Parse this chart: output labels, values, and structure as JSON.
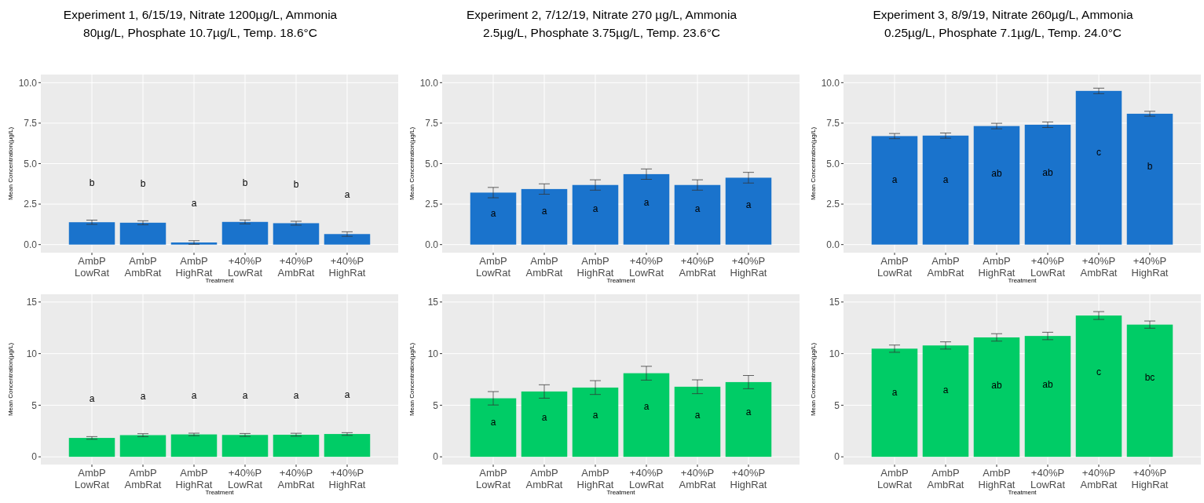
{
  "chart_data": [
    {
      "type": "bar",
      "title": "Experiment 1, 6/15/19, Nitrate 1200µg/L, Ammonia 80µg/L, Phosphate 10.7µg/L, Temp. 18.6°C",
      "xlabel": "Treatment",
      "ylabel": "Mean Concentration(µg/L)",
      "categories": [
        "AmbP LowRat",
        "AmbP AmbRat",
        "AmbP HighRat",
        "+40%P LowRat",
        "+40%P AmbRat",
        "+40%P HighRat"
      ],
      "values": [
        1.38,
        1.35,
        0.13,
        1.4,
        1.32,
        0.65
      ],
      "errors": [
        0.13,
        0.12,
        0.11,
        0.12,
        0.12,
        0.14
      ],
      "color": "#1a73cc",
      "ylim": [
        -0.5,
        10.5
      ],
      "yticks": [
        {
          "value": 0,
          "label": "0.0"
        },
        {
          "value": 2.5,
          "label": "2.5"
        },
        {
          "value": 5,
          "label": "5.0"
        },
        {
          "value": 7.5,
          "label": "7.5"
        },
        {
          "value": 10,
          "label": "10.0"
        }
      ],
      "grid": true,
      "annotations": [
        "b",
        "b",
        "a",
        "b",
        "b",
        "a"
      ]
    },
    {
      "type": "bar",
      "title": "Experiment 2, 7/12/19, Nitrate 270 µg/L, Ammonia 2.5µg/L, Phosphate 3.75µg/L, Temp. 23.6°C",
      "xlabel": "Treatment",
      "ylabel": "Mean Concentration(µg/L)",
      "categories": [
        "AmbP LowRat",
        "AmbP AmbRat",
        "AmbP HighRat",
        "+40%P LowRat",
        "+40%P AmbRat",
        "+40%P HighRat"
      ],
      "values": [
        3.21,
        3.43,
        3.68,
        4.35,
        3.68,
        4.13
      ],
      "errors": [
        0.32,
        0.32,
        0.32,
        0.32,
        0.32,
        0.33
      ],
      "color": "#1a73cc",
      "ylim": [
        -0.5,
        10.5
      ],
      "yticks": [
        {
          "value": 0,
          "label": "0.0"
        },
        {
          "value": 2.5,
          "label": "2.5"
        },
        {
          "value": 5,
          "label": "5.0"
        },
        {
          "value": 7.5,
          "label": "7.5"
        },
        {
          "value": 10,
          "label": "10.0"
        }
      ],
      "grid": true,
      "annotations": [
        "a",
        "a",
        "a",
        "a",
        "a",
        "a"
      ]
    },
    {
      "type": "bar",
      "title": "Experiment 3, 8/9/19, Nitrate 260µg/L, Ammonia 0.25µg/L, Phosphate 7.1µg/L, Temp. 24.0°C",
      "xlabel": "Treatment",
      "ylabel": "Mean Concentration(µg/L)",
      "categories": [
        "AmbP LowRat",
        "AmbP AmbRat",
        "AmbP HighRat",
        "+40%P LowRat",
        "+40%P AmbRat",
        "+40%P HighRat"
      ],
      "values": [
        6.7,
        6.73,
        7.32,
        7.4,
        9.49,
        8.08
      ],
      "errors": [
        0.16,
        0.16,
        0.17,
        0.17,
        0.17,
        0.15
      ],
      "color": "#1a73cc",
      "ylim": [
        -0.5,
        10.5
      ],
      "yticks": [
        {
          "value": 0,
          "label": "0.0"
        },
        {
          "value": 2.5,
          "label": "2.5"
        },
        {
          "value": 5,
          "label": "5.0"
        },
        {
          "value": 7.5,
          "label": "7.5"
        },
        {
          "value": 10,
          "label": "10.0"
        }
      ],
      "grid": true,
      "annotations": [
        "a",
        "a",
        "ab",
        "ab",
        "c",
        "b"
      ]
    },
    {
      "type": "bar",
      "xlabel": "Treatment",
      "ylabel": "Mean Concentration(µg/L)",
      "categories": [
        "AmbP LowRat",
        "AmbP AmbRat",
        "AmbP HighRat",
        "+40%P LowRat",
        "+40%P AmbRat",
        "+40%P HighRat"
      ],
      "values": [
        1.83,
        2.1,
        2.17,
        2.12,
        2.14,
        2.21
      ],
      "errors": [
        0.13,
        0.14,
        0.12,
        0.14,
        0.14,
        0.13
      ],
      "color": "#00cc66",
      "ylim": [
        -0.75,
        15.75
      ],
      "yticks": [
        0,
        5,
        10,
        15
      ],
      "grid": true,
      "annotations": [
        "a",
        "a",
        "a",
        "a",
        "a",
        "a"
      ]
    },
    {
      "type": "bar",
      "xlabel": "Treatment",
      "ylabel": "Mean Concentration(µg/L)",
      "categories": [
        "AmbP LowRat",
        "AmbP AmbRat",
        "AmbP HighRat",
        "+40%P LowRat",
        "+40%P AmbRat",
        "+40%P HighRat"
      ],
      "values": [
        5.67,
        6.33,
        6.71,
        8.1,
        6.79,
        7.24
      ],
      "errors": [
        0.65,
        0.65,
        0.67,
        0.67,
        0.67,
        0.64
      ],
      "color": "#00cc66",
      "ylim": [
        -0.75,
        15.75
      ],
      "yticks": [
        0,
        5,
        10,
        15
      ],
      "grid": true,
      "annotations": [
        "a",
        "a",
        "a",
        "a",
        "a",
        "a"
      ]
    },
    {
      "type": "bar",
      "xlabel": "Treatment",
      "ylabel": "Mean Concentration(µg/L)",
      "categories": [
        "AmbP LowRat",
        "AmbP AmbRat",
        "AmbP HighRat",
        "+40%P LowRat",
        "+40%P AmbRat",
        "+40%P HighRat"
      ],
      "values": [
        10.48,
        10.79,
        11.57,
        11.71,
        13.69,
        12.81
      ],
      "errors": [
        0.35,
        0.35,
        0.36,
        0.36,
        0.38,
        0.35
      ],
      "color": "#00cc66",
      "ylim": [
        -0.75,
        15.75
      ],
      "yticks": [
        0,
        5,
        10,
        15
      ],
      "grid": true,
      "annotations": [
        "a",
        "a",
        "ab",
        "ab",
        "c",
        "bc"
      ]
    }
  ]
}
